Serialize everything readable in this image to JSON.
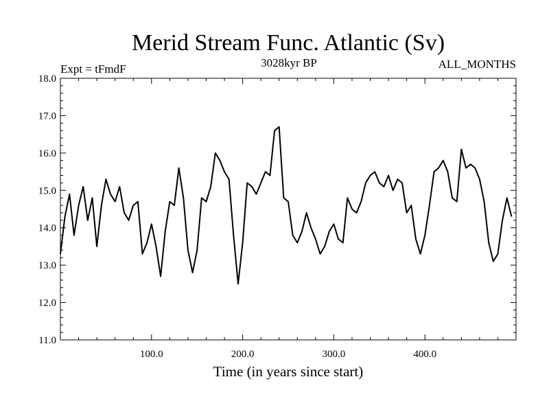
{
  "chart_data": {
    "type": "line",
    "title": "Merid Stream Func. Atlantic (Sv)",
    "subtitle_left": "Expt = tFmdF",
    "subtitle_center": "3028kyr BP",
    "subtitle_right": "ALL_MONTHS",
    "xlabel": "Time (in years since start)",
    "ylabel": "",
    "xlim": [
      0,
      500
    ],
    "ylim": [
      11.0,
      18.0
    ],
    "x_ticks": [
      100,
      200,
      300,
      400
    ],
    "x_tick_labels": [
      "100.0",
      "200.0",
      "300.0",
      "400.0"
    ],
    "y_ticks": [
      11,
      12,
      13,
      14,
      15,
      16,
      17,
      18
    ],
    "y_tick_labels": [
      "11.0",
      "12.0",
      "13.0",
      "14.0",
      "15.0",
      "16.0",
      "17.0",
      "18.0"
    ],
    "grid": false,
    "series": [
      {
        "name": "Merid Stream Func. Atlantic",
        "x_start": 0,
        "x_step": 5,
        "values": [
          13.3,
          14.3,
          14.9,
          13.8,
          14.6,
          15.1,
          14.2,
          14.8,
          13.5,
          14.6,
          15.3,
          14.9,
          14.7,
          15.1,
          14.4,
          14.2,
          14.6,
          14.7,
          13.3,
          13.6,
          14.1,
          13.5,
          12.7,
          13.9,
          14.7,
          14.6,
          15.6,
          14.8,
          13.4,
          12.8,
          13.4,
          14.8,
          14.7,
          15.1,
          16.0,
          15.8,
          15.5,
          15.3,
          13.8,
          12.5,
          13.6,
          15.2,
          15.1,
          14.9,
          15.2,
          15.5,
          15.4,
          16.6,
          16.7,
          14.8,
          14.7,
          13.8,
          13.6,
          13.9,
          14.4,
          14.0,
          13.7,
          13.3,
          13.5,
          13.9,
          14.1,
          13.7,
          13.6,
          14.8,
          14.5,
          14.4,
          14.7,
          15.2,
          15.4,
          15.5,
          15.2,
          15.1,
          15.4,
          15.0,
          15.3,
          15.2,
          14.4,
          14.6,
          13.7,
          13.3,
          13.8,
          14.6,
          15.5,
          15.6,
          15.8,
          15.5,
          14.8,
          14.7,
          16.1,
          15.6,
          15.7,
          15.6,
          15.3,
          14.7,
          13.6,
          13.1,
          13.3,
          14.2,
          14.8,
          14.3
        ]
      }
    ]
  }
}
